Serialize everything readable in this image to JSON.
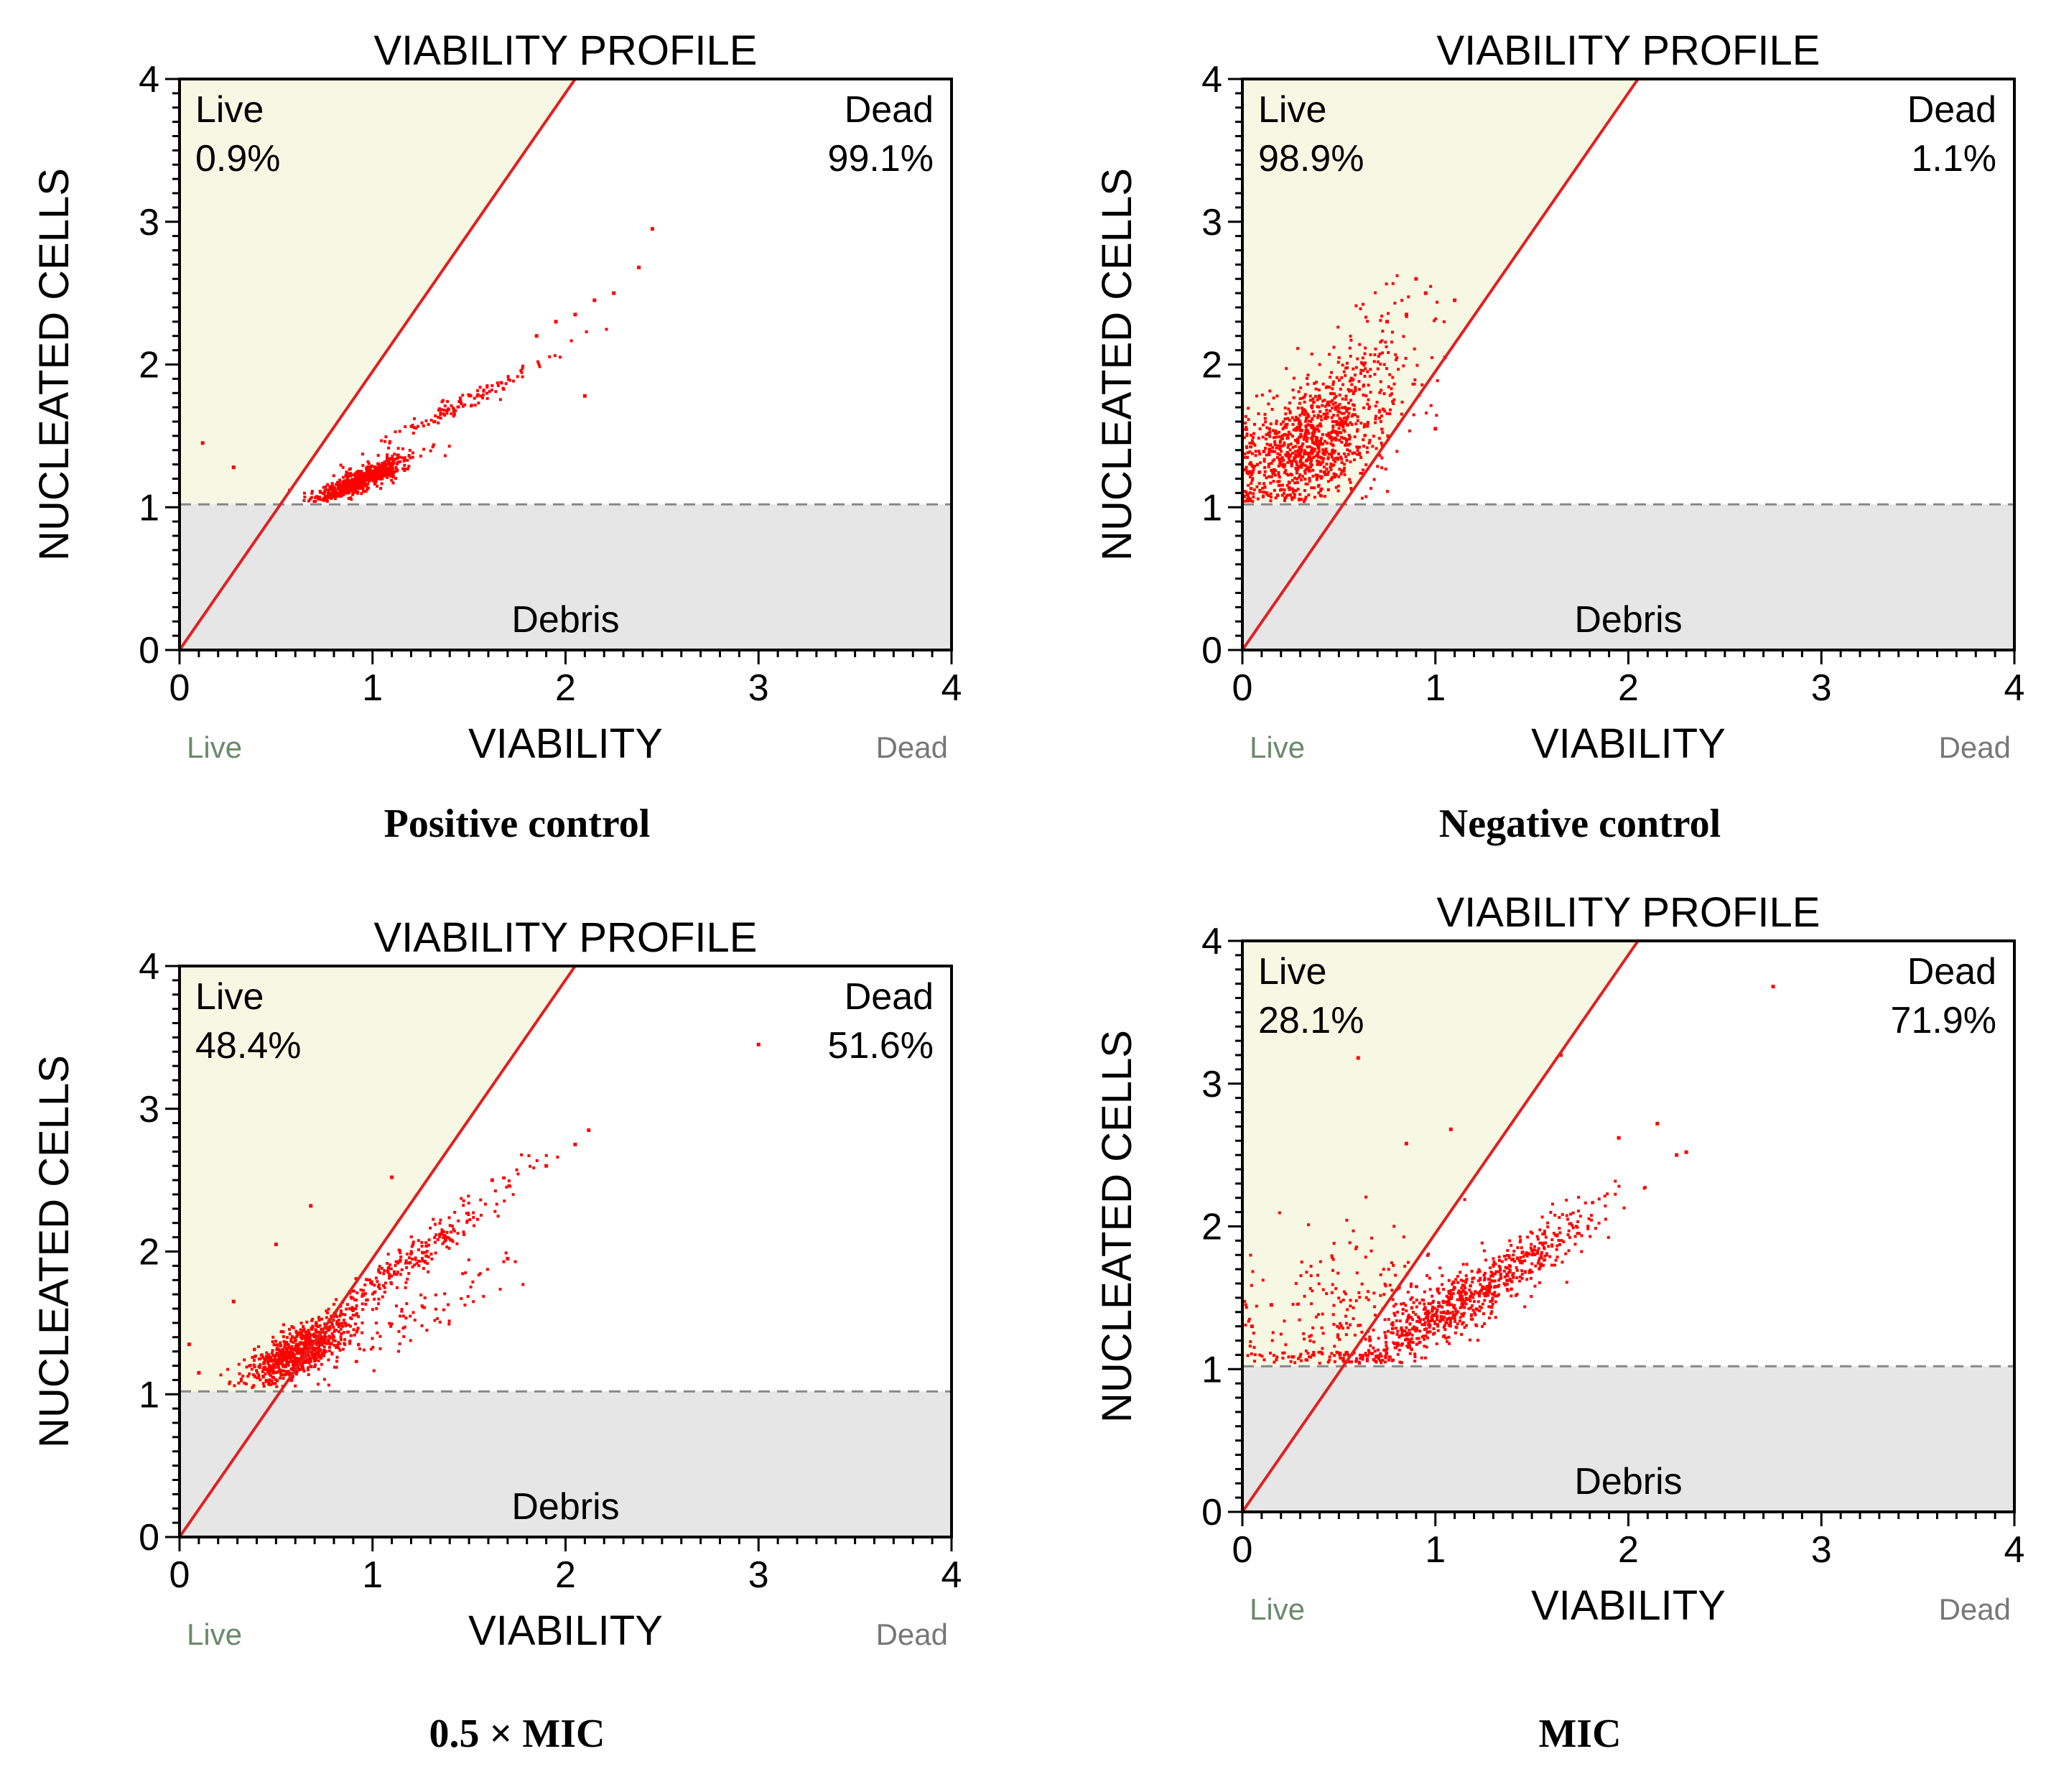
{
  "colors": {
    "live_region": "#f7f8e4",
    "debris_region": "#e6e6e6",
    "points": "#ff0000",
    "diagonal": "#e02020",
    "corner_label": "#6a8a6a",
    "threshold": "#888888"
  },
  "chart_data": [
    {
      "type": "scatter",
      "caption": "Positive control",
      "title": "VIABILITY PROFILE",
      "xlabel": "VIABILITY",
      "ylabel": "NUCLEATED CELLS",
      "xlim": [
        0,
        4
      ],
      "ylim": [
        0,
        4
      ],
      "xticks": [
        "0",
        "1",
        "2",
        "3",
        "4"
      ],
      "yticks": [
        "0",
        "1",
        "2",
        "3",
        "4"
      ],
      "x_left_label": "Live",
      "x_right_label": "Dead",
      "live_label": "Live",
      "live_pct": "0.9%",
      "dead_label": "Dead",
      "dead_pct": "99.1%",
      "debris_label": "Debris",
      "debris_threshold": 1.02,
      "gate_line": [
        [
          0,
          0
        ],
        [
          2.05,
          4
        ]
      ],
      "clusters": [
        {
          "cx": 0.95,
          "cy": 1.2,
          "sx": 0.12,
          "sy": 0.08,
          "corr": 0.85,
          "n": 650,
          "seed": 11
        },
        {
          "cx": 1.5,
          "cy": 1.75,
          "sx": 0.25,
          "sy": 0.18,
          "corr": 0.98,
          "n": 120,
          "seed": 12
        }
      ],
      "outliers": [
        [
          2.45,
          2.95
        ],
        [
          2.38,
          2.68
        ],
        [
          2.15,
          2.45
        ],
        [
          2.05,
          2.35
        ],
        [
          2.1,
          1.78
        ],
        [
          0.12,
          1.45
        ],
        [
          0.28,
          1.28
        ],
        [
          1.85,
          2.2
        ],
        [
          1.95,
          2.3
        ],
        [
          2.25,
          2.5
        ]
      ]
    },
    {
      "type": "scatter",
      "caption": "Negative control",
      "title": "VIABILITY PROFILE",
      "xlabel": "VIABILITY",
      "ylabel": "NUCLEATED CELLS",
      "xlim": [
        0,
        4
      ],
      "ylim": [
        0,
        4
      ],
      "xticks": [
        "0",
        "1",
        "2",
        "3",
        "4"
      ],
      "yticks": [
        "0",
        "1",
        "2",
        "3",
        "4"
      ],
      "x_left_label": "Live",
      "x_right_label": "Dead",
      "live_label": "Live",
      "live_pct": "98.9%",
      "dead_label": "Dead",
      "dead_pct": "1.1%",
      "debris_label": "Debris",
      "debris_threshold": 1.02,
      "gate_line": [
        [
          0,
          0
        ],
        [
          2.05,
          4
        ]
      ],
      "clusters": [
        {
          "cx": 0.35,
          "cy": 1.42,
          "sx": 0.2,
          "sy": 0.22,
          "corr": 0.4,
          "n": 900,
          "seed": 21
        },
        {
          "cx": 0.6,
          "cy": 1.95,
          "sx": 0.18,
          "sy": 0.25,
          "corr": 0.6,
          "n": 160,
          "seed": 22
        }
      ],
      "outliers": [
        [
          0.9,
          2.6
        ],
        [
          0.95,
          2.5
        ],
        [
          1.05,
          2.05
        ],
        [
          1.0,
          1.55
        ],
        [
          0.85,
          2.35
        ],
        [
          0.75,
          2.3
        ],
        [
          1.1,
          2.45
        ]
      ]
    },
    {
      "type": "scatter",
      "caption": "0.5 × MIC",
      "title": "VIABILITY PROFILE",
      "xlabel": "VIABILITY",
      "ylabel": "NUCLEATED CELLS",
      "xlim": [
        0,
        4
      ],
      "ylim": [
        0,
        4
      ],
      "xticks": [
        "0",
        "1",
        "2",
        "3",
        "4"
      ],
      "yticks": [
        "0",
        "1",
        "2",
        "3",
        "4"
      ],
      "x_left_label": "Live",
      "x_right_label": "Dead",
      "live_label": "Live",
      "live_pct": "48.4%",
      "dead_label": "Dead",
      "dead_pct": "51.6%",
      "debris_label": "Debris",
      "debris_threshold": 1.02,
      "gate_line": [
        [
          0,
          0
        ],
        [
          2.05,
          4
        ]
      ],
      "clusters": [
        {
          "cx": 0.62,
          "cy": 1.3,
          "sx": 0.14,
          "sy": 0.12,
          "corr": 0.7,
          "n": 700,
          "seed": 31
        },
        {
          "cx": 1.15,
          "cy": 1.9,
          "sx": 0.3,
          "sy": 0.3,
          "corr": 0.97,
          "n": 260,
          "seed": 32
        },
        {
          "cx": 1.2,
          "cy": 1.5,
          "sx": 0.25,
          "sy": 0.2,
          "corr": 0.9,
          "n": 80,
          "seed": 33
        }
      ],
      "outliers": [
        [
          2.12,
          2.85
        ],
        [
          2.05,
          2.75
        ],
        [
          1.62,
          2.5
        ],
        [
          1.1,
          2.52
        ],
        [
          0.68,
          2.32
        ],
        [
          0.5,
          2.05
        ],
        [
          0.28,
          1.65
        ],
        [
          0.05,
          1.35
        ],
        [
          3.0,
          3.45
        ],
        [
          1.7,
          1.95
        ],
        [
          1.9,
          2.6
        ],
        [
          0.1,
          1.15
        ]
      ]
    },
    {
      "type": "scatter",
      "caption": "MIC",
      "title": "VIABILITY PROFILE",
      "xlabel": "VIABILITY",
      "ylabel": "NUCLEATED CELLS",
      "xlim": [
        0,
        4
      ],
      "ylim": [
        0,
        4
      ],
      "xticks": [
        "0",
        "1",
        "2",
        "3",
        "4"
      ],
      "yticks": [
        "0",
        "1",
        "2",
        "3",
        "4"
      ],
      "x_left_label": "Live",
      "x_right_label": "Dead",
      "live_label": "Live",
      "live_pct": "28.1%",
      "dead_label": "Dead",
      "dead_pct": "71.9%",
      "debris_label": "Debris",
      "debris_threshold": 1.02,
      "gate_line": [
        [
          0,
          0
        ],
        [
          2.05,
          4
        ]
      ],
      "clusters": [
        {
          "cx": 1.1,
          "cy": 1.45,
          "sx": 0.28,
          "sy": 0.25,
          "corr": 0.9,
          "n": 620,
          "seed": 41
        },
        {
          "cx": 0.55,
          "cy": 1.35,
          "sx": 0.3,
          "sy": 0.35,
          "corr": 0.3,
          "n": 260,
          "seed": 42
        },
        {
          "cx": 1.55,
          "cy": 1.85,
          "sx": 0.25,
          "sy": 0.25,
          "corr": 0.9,
          "n": 120,
          "seed": 43
        }
      ],
      "outliers": [
        [
          2.75,
          3.68
        ],
        [
          1.65,
          3.2
        ],
        [
          0.6,
          3.18
        ],
        [
          2.15,
          2.72
        ],
        [
          2.3,
          2.52
        ],
        [
          2.25,
          2.5
        ],
        [
          1.08,
          2.68
        ],
        [
          0.85,
          2.58
        ],
        [
          1.95,
          2.62
        ],
        [
          0.15,
          1.45
        ],
        [
          0.05,
          1.3
        ]
      ]
    }
  ]
}
